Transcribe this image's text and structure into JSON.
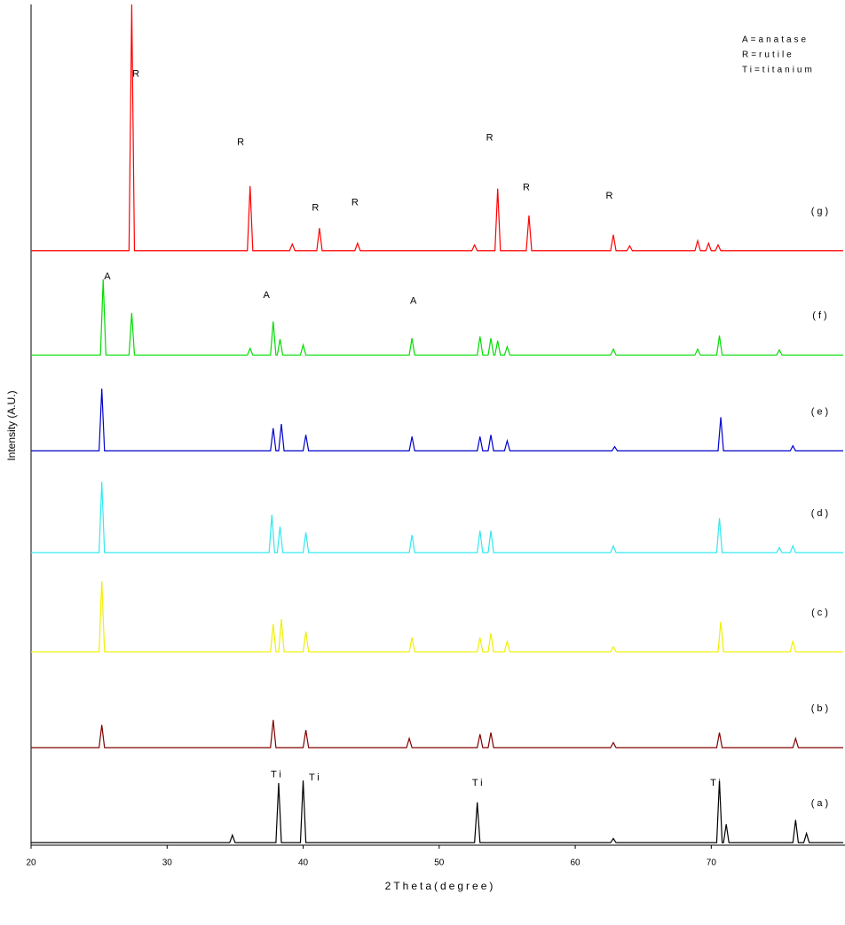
{
  "chart_data": {
    "type": "line",
    "x_label": "2Theta(degree)",
    "y_label": "Intensity (A.U.)",
    "xlim": [
      20,
      79.7
    ],
    "xticks": [
      20,
      30,
      40,
      50,
      60,
      70
    ],
    "ylim": [
      0,
      100
    ],
    "legend_text": [
      "A=anatase",
      "R=rutile",
      "Ti=titanium"
    ],
    "annotations": [
      {
        "text": "R",
        "x": 27.8,
        "y": 91.7
      },
      {
        "text": "R",
        "x": 35.5,
        "y": 83.6
      },
      {
        "text": "R",
        "x": 41.0,
        "y": 75.8
      },
      {
        "text": "R",
        "x": 43.9,
        "y": 76.4
      },
      {
        "text": "R",
        "x": 53.8,
        "y": 84.1
      },
      {
        "text": "R",
        "x": 56.5,
        "y": 78.2
      },
      {
        "text": "R",
        "x": 62.6,
        "y": 77.2
      },
      {
        "text": "A",
        "x": 25.7,
        "y": 67.6
      },
      {
        "text": "A",
        "x": 37.4,
        "y": 65.4
      },
      {
        "text": "A",
        "x": 48.2,
        "y": 64.7
      },
      {
        "text": "Ti",
        "x": 38.1,
        "y": 8.4
      },
      {
        "text": "Ti",
        "x": 40.9,
        "y": 8.0
      },
      {
        "text": "Ti",
        "x": 52.9,
        "y": 7.4
      },
      {
        "text": "Ti",
        "x": 70.4,
        "y": 7.4
      }
    ],
    "series": [
      {
        "name": "(g)",
        "color": "#ff0000",
        "x": [
          20,
          27.2,
          27.4,
          27.6,
          35.9,
          36.1,
          36.3,
          39.0,
          39.2,
          39.4,
          41.0,
          41.2,
          41.4,
          43.8,
          44.0,
          44.2,
          52.4,
          52.6,
          52.8,
          54.1,
          54.3,
          54.5,
          56.4,
          56.6,
          56.8,
          62.6,
          62.8,
          63.0,
          63.8,
          64.0,
          64.2,
          68.8,
          69.0,
          69.2,
          69.6,
          69.8,
          70.0,
          70.3,
          70.5,
          70.7,
          79.7
        ],
        "values": [
          70.7,
          70.7,
          100,
          70.7,
          70.7,
          78.4,
          70.7,
          70.7,
          71.5,
          70.7,
          70.7,
          73.4,
          70.7,
          70.7,
          71.6,
          70.7,
          70.7,
          71.4,
          70.7,
          70.7,
          78.1,
          70.7,
          70.7,
          74.9,
          70.7,
          70.7,
          72.6,
          70.7,
          70.7,
          71.3,
          70.7,
          70.7,
          71.9,
          70.7,
          70.7,
          71.6,
          70.7,
          70.7,
          71.4,
          70.7,
          70.7
        ]
      },
      {
        "name": "(f)",
        "color": "#00dd00",
        "x": [
          20,
          25.1,
          25.3,
          25.5,
          27.2,
          27.4,
          27.6,
          35.9,
          36.1,
          36.3,
          37.6,
          37.8,
          38.0,
          38.1,
          38.3,
          38.5,
          39.8,
          40.0,
          40.2,
          47.8,
          48.0,
          48.2,
          52.8,
          53.0,
          53.2,
          53.6,
          53.8,
          54.0,
          54.1,
          54.3,
          54.5,
          54.8,
          55.0,
          55.2,
          62.6,
          62.8,
          63.0,
          68.8,
          69.0,
          69.2,
          70.4,
          70.6,
          70.8,
          74.8,
          75.0,
          75.2,
          79.7
        ],
        "values": [
          58.3,
          58.3,
          67.3,
          58.3,
          58.3,
          63.3,
          58.3,
          58.3,
          59.1,
          58.3,
          58.3,
          62.3,
          58.3,
          58.3,
          60.2,
          58.3,
          58.3,
          59.5,
          58.3,
          58.3,
          60.3,
          58.3,
          58.3,
          60.5,
          58.3,
          58.3,
          60.3,
          58.3,
          58.3,
          60.0,
          58.3,
          58.3,
          59.3,
          58.3,
          58.3,
          59.0,
          58.3,
          58.3,
          59.0,
          58.3,
          58.3,
          60.6,
          58.3,
          58.3,
          58.9,
          58.3,
          58.3
        ]
      },
      {
        "name": "(e)",
        "color": "#0000cc",
        "x": [
          20,
          25.0,
          25.2,
          25.4,
          37.6,
          37.8,
          38.0,
          38.2,
          38.4,
          38.6,
          40.0,
          40.2,
          40.4,
          47.8,
          48.0,
          48.2,
          52.8,
          53.0,
          53.2,
          53.6,
          53.8,
          54.0,
          54.8,
          55.0,
          55.2,
          62.7,
          62.9,
          63.1,
          70.5,
          70.7,
          70.9,
          75.8,
          76.0,
          76.2,
          79.7
        ],
        "values": [
          46.9,
          46.9,
          54.3,
          46.9,
          46.9,
          49.6,
          46.9,
          46.9,
          50.1,
          46.9,
          46.9,
          48.8,
          46.9,
          46.9,
          48.6,
          46.9,
          46.9,
          48.6,
          46.9,
          46.9,
          48.8,
          46.9,
          46.9,
          48.1,
          46.9,
          46.9,
          47.4,
          46.9,
          46.9,
          50.9,
          46.9,
          46.9,
          47.5,
          46.9,
          46.9
        ]
      },
      {
        "name": "(d)",
        "color": "#33e8f0",
        "x": [
          20,
          25.0,
          25.2,
          25.4,
          37.5,
          37.7,
          37.9,
          38.1,
          38.3,
          38.5,
          40.0,
          40.2,
          40.4,
          47.8,
          48.0,
          48.2,
          52.8,
          53.0,
          53.2,
          53.6,
          53.8,
          54.0,
          62.6,
          62.8,
          63.0,
          70.4,
          70.6,
          70.8,
          74.8,
          75.0,
          75.2,
          75.8,
          76.0,
          76.2,
          79.7
        ],
        "values": [
          34.8,
          34.8,
          43.2,
          34.8,
          34.8,
          39.3,
          34.8,
          34.8,
          37.9,
          34.8,
          34.8,
          37.2,
          34.8,
          34.8,
          36.9,
          34.8,
          34.8,
          37.4,
          34.8,
          34.8,
          37.4,
          34.8,
          34.8,
          35.6,
          34.8,
          34.8,
          38.9,
          34.8,
          34.8,
          35.4,
          34.8,
          34.8,
          35.6,
          34.8,
          34.8
        ]
      },
      {
        "name": "(c)",
        "color": "#f0f000",
        "x": [
          20,
          25.0,
          25.2,
          25.4,
          37.6,
          37.8,
          38.0,
          38.2,
          38.4,
          38.6,
          40.0,
          40.2,
          40.4,
          47.8,
          48.0,
          48.2,
          52.8,
          53.0,
          53.2,
          53.6,
          53.8,
          54.0,
          54.8,
          55.0,
          55.2,
          62.6,
          62.8,
          63.0,
          70.5,
          70.7,
          70.9,
          75.8,
          76.0,
          76.2,
          79.7
        ],
        "values": [
          23.0,
          23.0,
          31.4,
          23.0,
          23.0,
          26.3,
          23.0,
          23.0,
          26.9,
          23.0,
          23.0,
          25.4,
          23.0,
          23.0,
          24.7,
          23.0,
          23.0,
          24.7,
          23.0,
          23.0,
          25.2,
          23.0,
          23.0,
          24.3,
          23.0,
          23.0,
          23.6,
          23.0,
          23.0,
          26.6,
          23.0,
          23.0,
          24.3,
          23.0,
          23.0
        ]
      },
      {
        "name": "(b)",
        "color": "#800000",
        "x": [
          20,
          25.0,
          25.2,
          25.4,
          37.6,
          37.8,
          38.0,
          40.0,
          40.2,
          40.4,
          47.6,
          47.8,
          48.0,
          52.8,
          53.0,
          53.2,
          53.6,
          53.8,
          54.0,
          62.6,
          62.8,
          63.0,
          70.4,
          70.6,
          70.8,
          76.0,
          76.2,
          76.4,
          79.7
        ],
        "values": [
          11.6,
          11.6,
          14.3,
          11.6,
          11.6,
          14.9,
          11.6,
          11.6,
          13.7,
          11.6,
          11.6,
          12.7,
          11.6,
          11.6,
          13.2,
          11.6,
          11.6,
          13.4,
          11.6,
          11.6,
          12.2,
          11.6,
          11.6,
          13.4,
          11.6,
          11.6,
          12.7,
          11.6,
          11.6
        ]
      },
      {
        "name": "(a)",
        "color": "#000000",
        "x": [
          20,
          34.6,
          34.8,
          35.0,
          38.0,
          38.2,
          38.4,
          39.8,
          40.0,
          40.2,
          52.6,
          52.8,
          53.0,
          62.6,
          62.8,
          63.0,
          70.4,
          70.6,
          70.8,
          70.9,
          71.1,
          71.3,
          76.0,
          76.2,
          76.4,
          76.8,
          77.0,
          77.2,
          79.7
        ],
        "values": [
          0.3,
          0.3,
          1.2,
          0.3,
          0.3,
          7.4,
          0.3,
          0.3,
          7.7,
          0.3,
          0.3,
          5.1,
          0.3,
          0.3,
          0.8,
          0.3,
          0.3,
          7.7,
          0.3,
          0.3,
          2.5,
          0.3,
          0.3,
          3.0,
          0.3,
          0.3,
          1.4,
          0.3,
          0.3
        ]
      }
    ]
  }
}
